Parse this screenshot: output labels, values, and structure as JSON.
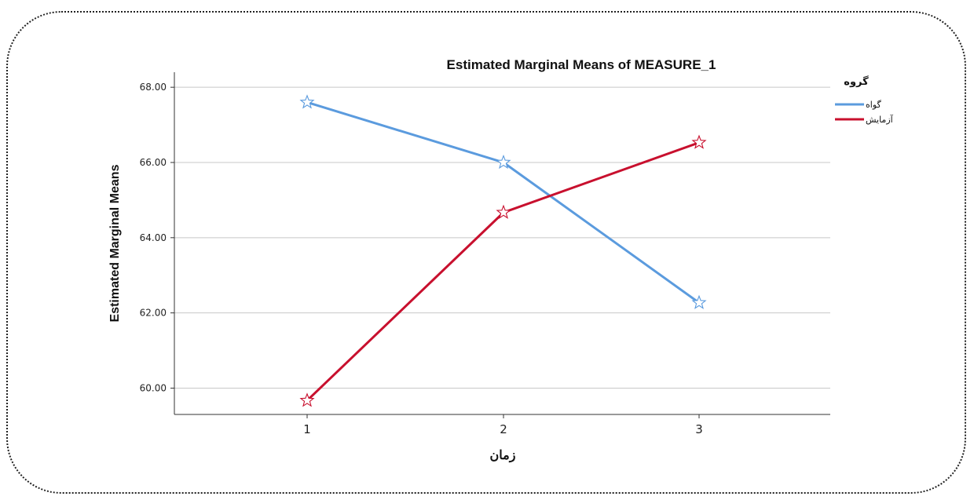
{
  "chart_data": {
    "type": "line",
    "title": "Estimated Marginal Means of MEASURE_1",
    "xlabel": "زمان",
    "ylabel": "Estimated Marginal Means",
    "categories": [
      "1",
      "2",
      "3"
    ],
    "ylim": [
      59.3,
      68.4
    ],
    "yticks": [
      60,
      62,
      64,
      66,
      68
    ],
    "ytick_labels": [
      "60.00",
      "62.00",
      "64.00",
      "66.00",
      "68.00"
    ],
    "grid": "horizontal",
    "legend": {
      "title": "گروه",
      "placement": "top-right"
    },
    "marker": "star",
    "series": [
      {
        "name": "گواه",
        "color": "#5b9bde",
        "values": [
          67.6,
          66.0,
          62.27
        ]
      },
      {
        "name": "آزمایش",
        "color": "#c8102e",
        "values": [
          59.67,
          64.67,
          66.53
        ]
      }
    ]
  }
}
